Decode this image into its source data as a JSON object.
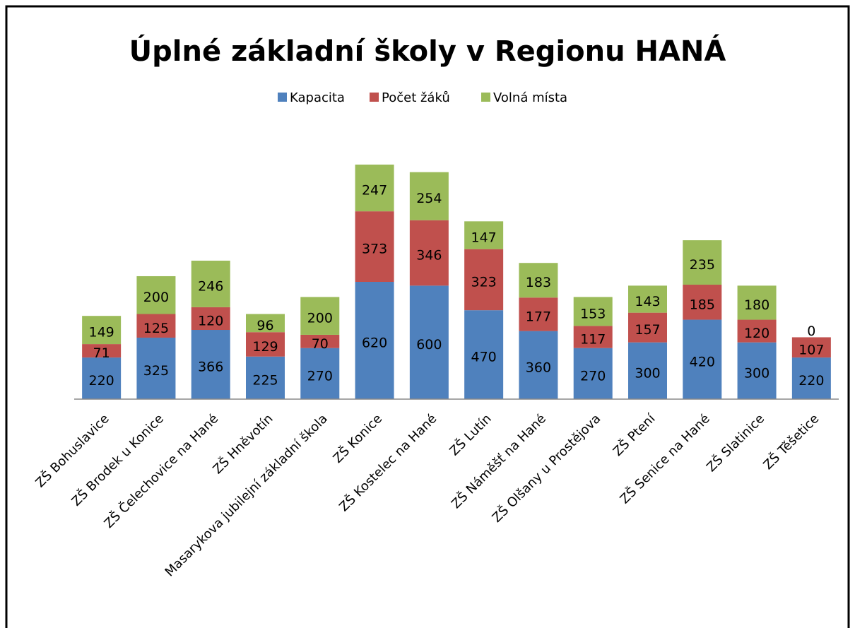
{
  "chart_data": {
    "type": "stacked_bar",
    "title": "Úplné základní školy v Regionu HANÁ",
    "categories": [
      "ZŠ Bohuslavice",
      "ZŠ Brodek u Konice",
      "ZŠ Čelechovice na Hané",
      "ZŠ Hněvotín",
      "Masarykova jubilejní základní škola",
      "ZŠ Konice",
      "ZŠ Kostelec na Hané",
      "ZŠ Lutín",
      "ZŠ Náměšť na Hané",
      "ZŠ Olšany u Prostějova",
      "ZŠ Ptení",
      "ZŠ Senice na Hané",
      "ZŠ Slatinice",
      "ZŠ Těšetice"
    ],
    "series": [
      {
        "name": "Kapacita",
        "color": "#4f81bd",
        "values": [
          220,
          325,
          366,
          225,
          270,
          620,
          600,
          470,
          360,
          270,
          300,
          420,
          300,
          220
        ]
      },
      {
        "name": "Počet žáků",
        "color": "#c0504d",
        "values": [
          71,
          125,
          120,
          129,
          70,
          373,
          346,
          323,
          177,
          117,
          157,
          185,
          120,
          107
        ]
      },
      {
        "name": "Volná místa",
        "color": "#9bbb59",
        "values": [
          149,
          200,
          246,
          96,
          200,
          247,
          254,
          147,
          183,
          153,
          143,
          235,
          180,
          0
        ]
      }
    ],
    "legend": "top"
  }
}
